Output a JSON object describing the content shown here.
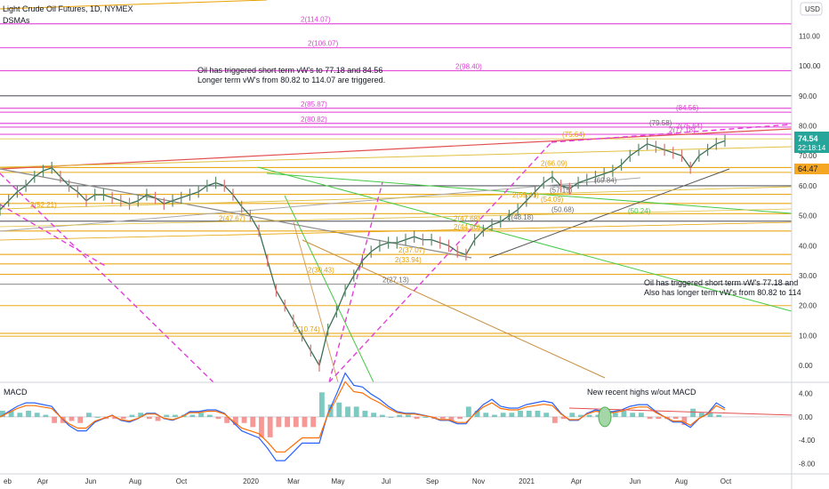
{
  "header": {
    "title": "Light Crude Oil Futures, 1D, NYMEX",
    "indicator": "DSMAs",
    "currency": "USD"
  },
  "price_tags": {
    "last_price": "74.54",
    "countdown": "22:18:14",
    "level_price": "64.47",
    "last_color": "#26a69a",
    "level_color": "#f5a623"
  },
  "annotations": {
    "note_top_1": "Oil has triggered short term vW's to 77.18 and 84.56",
    "note_top_2": "Longer term vW's from 80.82 to 114.07 are triggered.",
    "note_right_1": "Oil has triggered short term vW's 77.18 and",
    "note_right_2": "Also has longer term vW's from 80.82 to 114",
    "macd_note": "New recent highs w/out MACD"
  },
  "macd": {
    "title": "MACD",
    "ticks": [
      {
        "v": 4,
        "t": "4.00"
      },
      {
        "v": 0,
        "t": "0.00"
      },
      {
        "v": -4,
        "t": "-4.00"
      },
      {
        "v": -8,
        "t": "-8.00"
      }
    ]
  },
  "colors": {
    "magenta": "#e040d8",
    "orange": "#e8a000",
    "yellow_line": "#e0c040",
    "green": "#44c944",
    "red": "#e35050",
    "price_up": "#5b8a6a",
    "price_down": "#d47070",
    "gray": "#6b6b6b"
  },
  "chart_data": {
    "type": "line",
    "title": "Light Crude Oil Futures, 1D, NYMEX",
    "ylim": [
      -5,
      122
    ],
    "y_ticks": [
      {
        "v": 110,
        "t": "110.00"
      },
      {
        "v": 100,
        "t": "100.00"
      },
      {
        "v": 90,
        "t": "90.00"
      },
      {
        "v": 80,
        "t": "80.00"
      },
      {
        "v": 70,
        "t": "70.00"
      },
      {
        "v": 60,
        "t": "60.00"
      },
      {
        "v": 50,
        "t": "50.00"
      },
      {
        "v": 40,
        "t": "40.00"
      },
      {
        "v": 30,
        "t": "30.00"
      },
      {
        "v": 20,
        "t": "20.00"
      },
      {
        "v": 10,
        "t": "10.00"
      },
      {
        "v": 0,
        "t": "0.00"
      }
    ],
    "x_labels": [
      "eb",
      "Apr",
      "Jun",
      "Aug",
      "Oct",
      "2020",
      "Mar",
      "May",
      "Jul",
      "Sep",
      "Nov",
      "2021",
      "Apr",
      "Jun",
      "Aug",
      "Oct"
    ],
    "level_labels": [
      {
        "t": "2(114.07)",
        "v": 114.07,
        "c": "magenta"
      },
      {
        "t": "2(106.07)",
        "v": 106.07,
        "c": "magenta"
      },
      {
        "t": "2(98.40)",
        "v": 98.4,
        "c": "magenta"
      },
      {
        "t": "2(85.87)",
        "v": 85.87,
        "c": "magenta"
      },
      {
        "t": "(84.56)",
        "v": 84.56,
        "c": "magenta"
      },
      {
        "t": "2(80.82)",
        "v": 80.82,
        "c": "magenta"
      },
      {
        "t": "(79.58)",
        "v": 79.58,
        "c": "gray"
      },
      {
        "t": "2(75.64)",
        "v": 78.5,
        "c": "magenta"
      },
      {
        "t": "2(77.18)",
        "v": 77.18,
        "c": "magenta"
      },
      {
        "t": "(75.64)",
        "v": 75.64,
        "c": "orange"
      },
      {
        "t": "2(66.09)",
        "v": 66.09,
        "c": "orange"
      },
      {
        "t": "(69.84)",
        "v": 60.5,
        "c": "gray"
      },
      {
        "t": "(57.15)",
        "v": 57.15,
        "c": "gray"
      },
      {
        "t": "2(59.45)",
        "v": 55.5,
        "c": "orange"
      },
      {
        "t": "(54.09)",
        "v": 54.09,
        "c": "orange"
      },
      {
        "t": "(50.68)",
        "v": 50.68,
        "c": "gray"
      },
      {
        "t": "(50.24)",
        "v": 50.24,
        "c": "green"
      },
      {
        "t": "2(47.67)",
        "v": 47.67,
        "c": "orange"
      },
      {
        "t": "2(48.18)",
        "v": 48.18,
        "c": "gray"
      },
      {
        "t": "2(47.68)",
        "v": 47.68,
        "c": "orange"
      },
      {
        "t": "2(44.90)",
        "v": 44.9,
        "c": "orange"
      },
      {
        "t": "2(37.07)",
        "v": 37.07,
        "c": "orange"
      },
      {
        "t": "2(33.94)",
        "v": 33.94,
        "c": "orange"
      },
      {
        "t": "2(30.43)",
        "v": 30.43,
        "c": "orange"
      },
      {
        "t": "2(27.13)",
        "v": 27.13,
        "c": "gray"
      },
      {
        "t": "2(10.74)",
        "v": 10.74,
        "c": "orange"
      },
      {
        "t": "2(52.21)",
        "v": 52.21,
        "c": "orange"
      }
    ],
    "horizontal_levels": [
      {
        "v": 114.07,
        "c": "magenta"
      },
      {
        "v": 106.07,
        "c": "magenta"
      },
      {
        "v": 98.4,
        "c": "magenta"
      },
      {
        "v": 90.0,
        "c": "black"
      },
      {
        "v": 85.87,
        "c": "magenta"
      },
      {
        "v": 84.56,
        "c": "magenta"
      },
      {
        "v": 80.82,
        "c": "magenta"
      },
      {
        "v": 79.58,
        "c": "magenta"
      },
      {
        "v": 77.18,
        "c": "magenta"
      },
      {
        "v": 75.64,
        "c": "yellow_line"
      },
      {
        "v": 66.09,
        "c": "orange"
      },
      {
        "v": 64.47,
        "c": "orange"
      },
      {
        "v": 60.0,
        "c": "black"
      },
      {
        "v": 57.15,
        "c": "orange"
      },
      {
        "v": 54.09,
        "c": "orange"
      },
      {
        "v": 50.68,
        "c": "orange"
      },
      {
        "v": 48.18,
        "c": "black"
      },
      {
        "v": 44.9,
        "c": "orange"
      },
      {
        "v": 37.07,
        "c": "orange"
      },
      {
        "v": 33.94,
        "c": "orange"
      },
      {
        "v": 30.43,
        "c": "orange"
      },
      {
        "v": 27.13,
        "c": "gray"
      },
      {
        "v": 20.0,
        "c": "orange"
      },
      {
        "v": 10.74,
        "c": "orange"
      },
      {
        "v": 9.8,
        "c": "orange"
      }
    ],
    "series": [
      {
        "name": "Light Crude Oil Futures",
        "values": [
          52,
          55,
          58,
          60,
          63,
          65,
          66,
          63,
          60,
          58,
          55,
          57,
          57,
          56,
          55,
          54,
          55,
          57,
          56,
          54,
          55,
          56,
          57,
          58,
          60,
          61,
          60,
          57,
          53,
          50,
          45,
          35,
          25,
          20,
          15,
          10,
          5,
          0,
          12,
          18,
          25,
          30,
          35,
          38,
          40,
          41,
          41,
          42,
          43,
          42,
          42,
          41,
          40,
          38,
          37,
          42,
          45,
          47,
          48,
          50,
          52,
          55,
          58,
          61,
          63,
          60,
          59,
          61,
          62,
          63,
          64,
          65,
          67,
          70,
          72,
          74,
          73,
          72,
          71,
          70,
          66,
          70,
          72,
          74,
          75
        ]
      }
    ]
  }
}
